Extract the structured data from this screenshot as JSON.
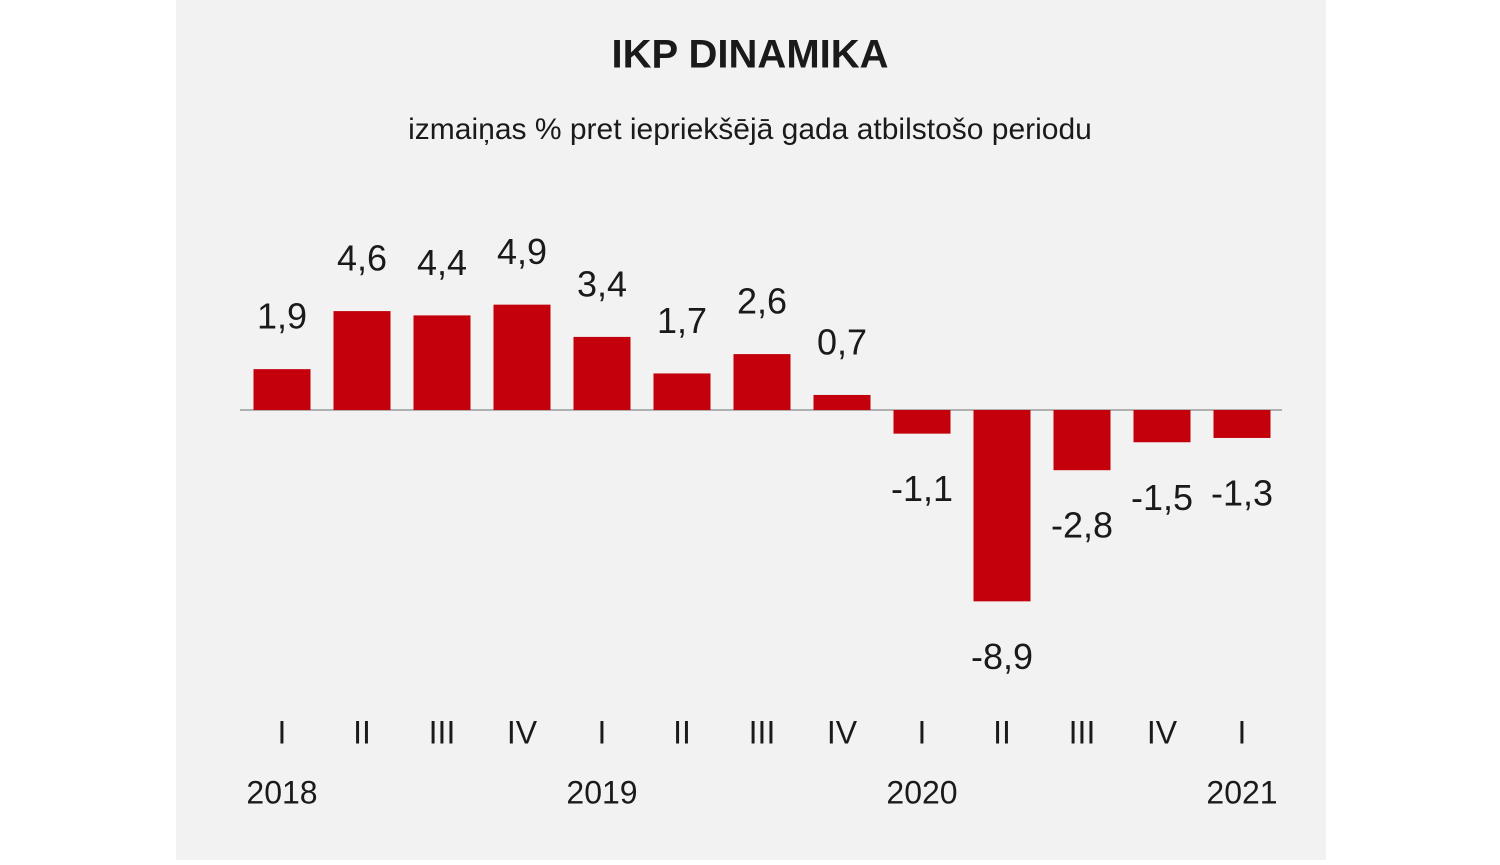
{
  "chart_data": {
    "type": "bar",
    "title": "IKP DINAMIKA",
    "subtitle": "izmaiņas % pret iepriekšējā gada atbilstošo periodu",
    "categories": [
      "I",
      "II",
      "III",
      "IV",
      "I",
      "II",
      "III",
      "IV",
      "I",
      "II",
      "III",
      "IV",
      "I"
    ],
    "years": [
      "2018",
      null,
      null,
      null,
      "2019",
      null,
      null,
      null,
      "2020",
      null,
      null,
      null,
      "2021"
    ],
    "values": [
      1.9,
      4.6,
      4.4,
      4.9,
      3.4,
      1.7,
      2.6,
      0.7,
      -1.1,
      -8.9,
      -2.8,
      -1.5,
      -1.3
    ],
    "value_labels": [
      "1,9",
      "4,6",
      "4,4",
      "4,9",
      "3,4",
      "1,7",
      "2,6",
      "0,7",
      "-1,1",
      "-8,9",
      "-2,8",
      "-1,5",
      "-1,3"
    ],
    "color": "#c3000b"
  }
}
